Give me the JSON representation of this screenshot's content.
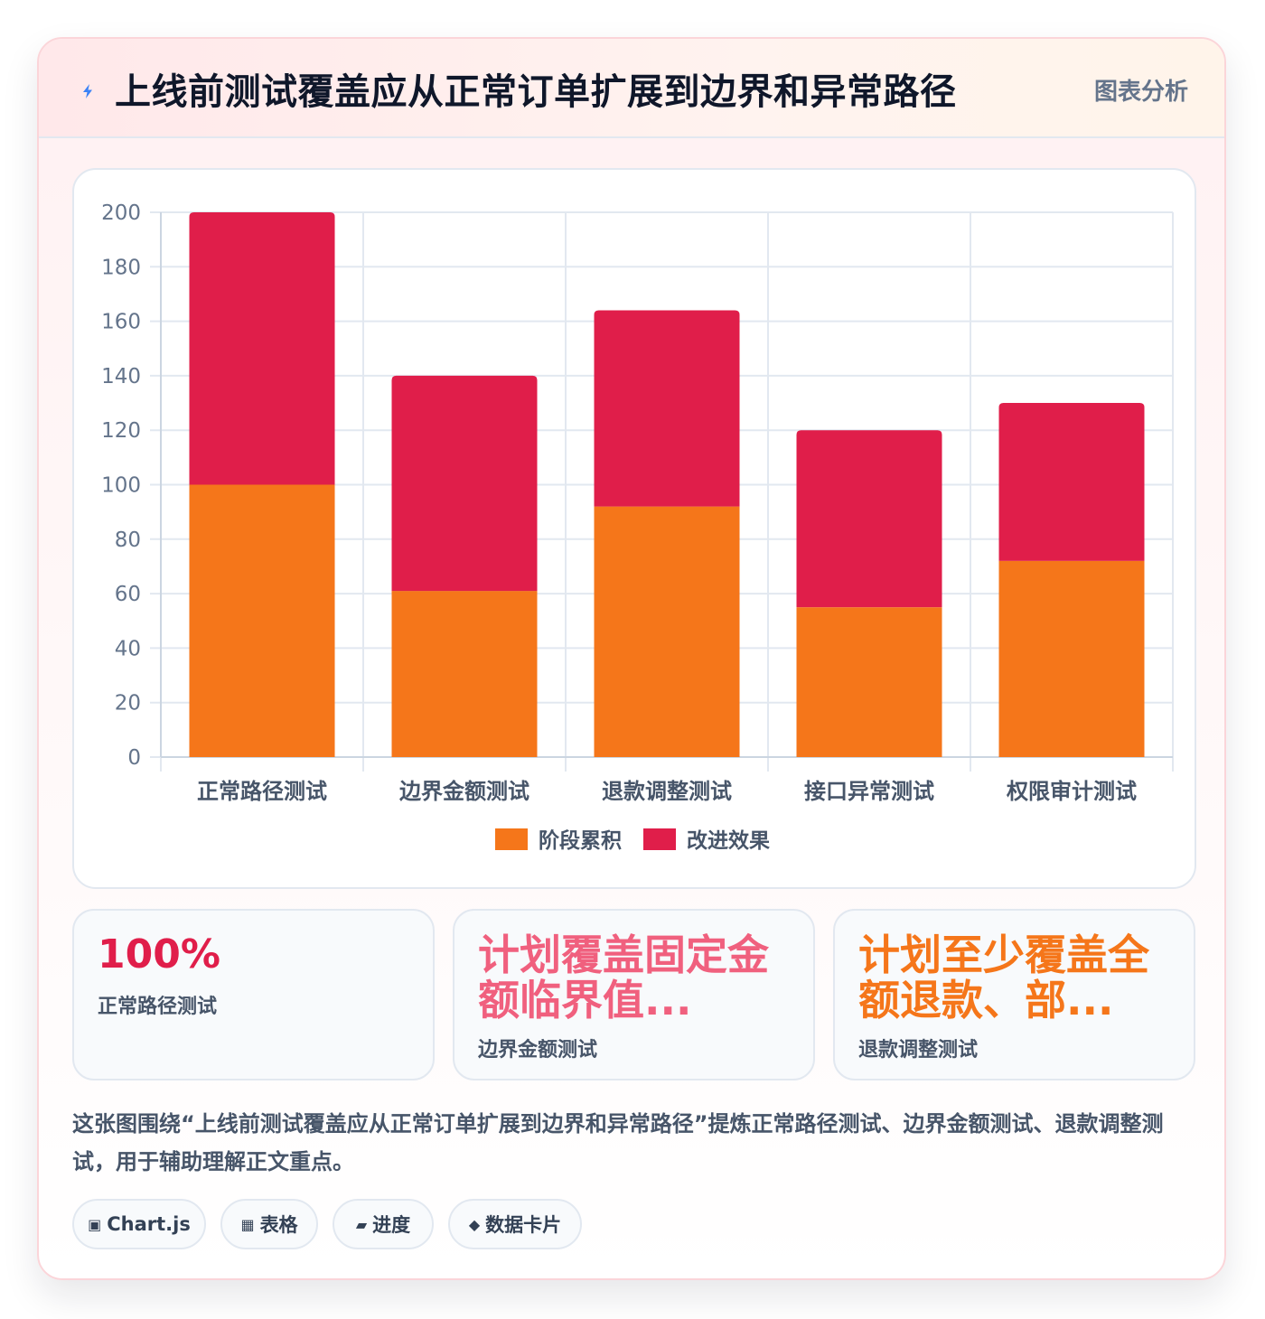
{
  "header": {
    "title": "上线前测试覆盖应从正常订单扩展到边界和异常路径",
    "tag": "图表分析",
    "icon": "lightning-icon"
  },
  "chart_data": {
    "type": "bar",
    "stacked": true,
    "categories": [
      "正常路径测试",
      "边界金额测试",
      "退款调整测试",
      "接口异常测试",
      "权限审计测试"
    ],
    "series": [
      {
        "name": "阶段累积",
        "color": "#f5761a",
        "values": [
          100,
          61,
          92,
          55,
          72
        ]
      },
      {
        "name": "改进效果",
        "color": "#e01e4a",
        "values": [
          100,
          79,
          72,
          65,
          58
        ]
      }
    ],
    "ylim": [
      0,
      200
    ],
    "yticks": [
      0,
      20,
      40,
      60,
      80,
      100,
      120,
      140,
      160,
      180,
      200
    ],
    "grid": true,
    "legend": "bottom"
  },
  "stats": [
    {
      "value": "100%",
      "label": "正常路径测试",
      "color": "#e01e4a"
    },
    {
      "value": "计划覆盖固定金额临界值...",
      "label": "边界金额测试",
      "color": "#f0607e"
    },
    {
      "value": "计划至少覆盖全额退款、部...",
      "label": "退款调整测试",
      "color": "#f5761a"
    }
  ],
  "summary": "这张图围绕“上线前测试覆盖应从正常订单扩展到边界和异常路径”提炼正常路径测试、边界金额测试、退款调整测试，用于辅助理解正文重点。",
  "pills": [
    {
      "icon": "▣",
      "label": "Chart.js"
    },
    {
      "icon": "▦",
      "label": "表格"
    },
    {
      "icon": "▰",
      "label": "进度"
    },
    {
      "icon": "◆",
      "label": "数据卡片"
    }
  ]
}
